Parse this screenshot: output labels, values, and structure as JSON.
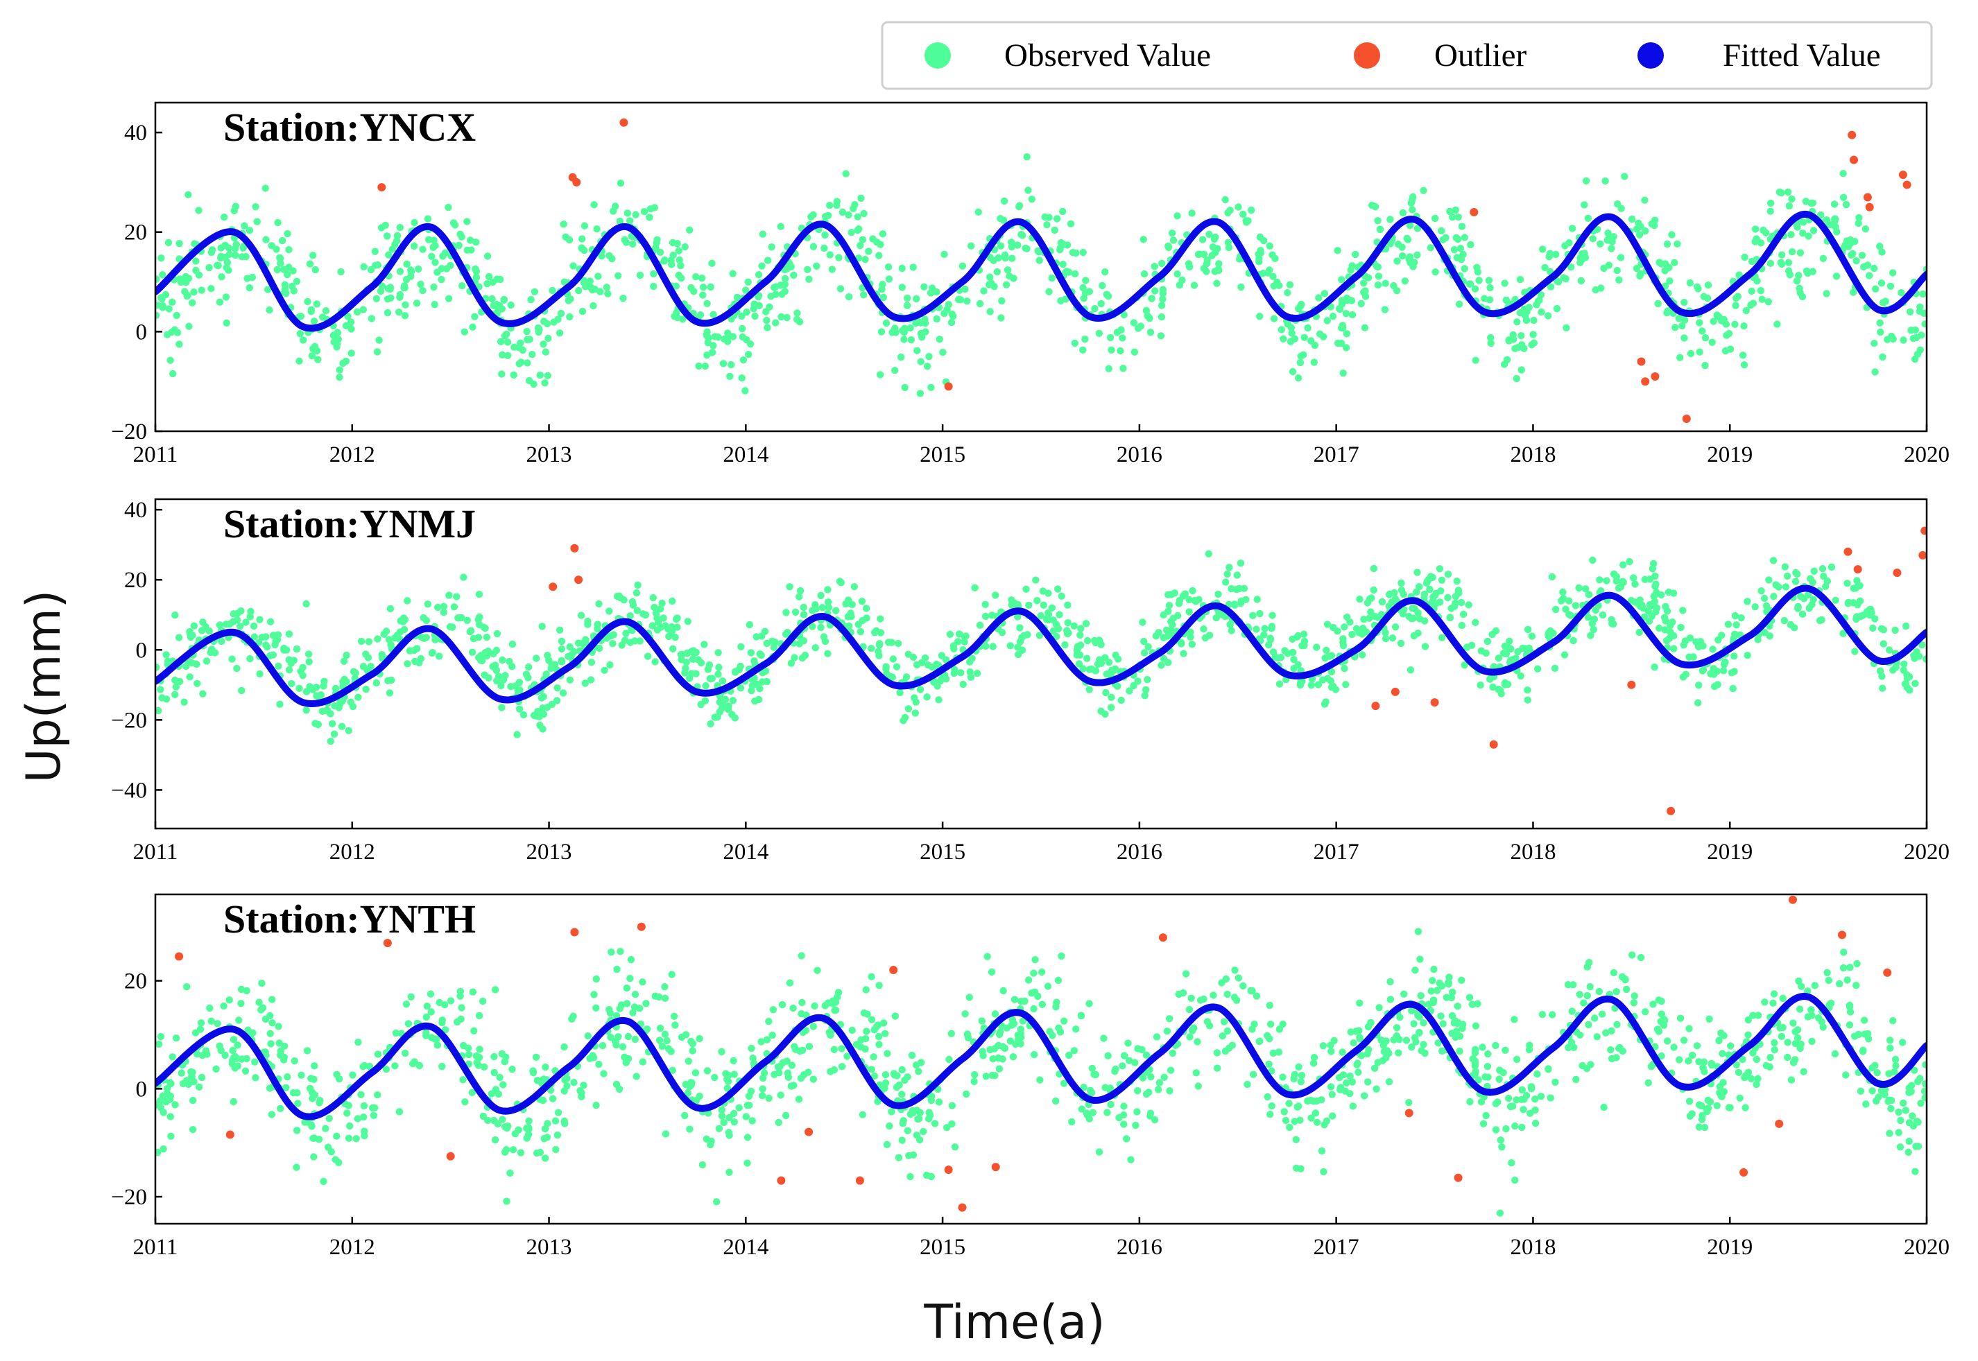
{
  "chart_data": {
    "type": "scatter",
    "ylabel": "Up(mm)",
    "xlabel": "Time(a)",
    "xlim": [
      2011,
      2020
    ],
    "x_ticks": [
      "2011",
      "2012",
      "2013",
      "2014",
      "2015",
      "2016",
      "2017",
      "2018",
      "2019",
      "2020"
    ],
    "legend": {
      "position": "top-right",
      "items": [
        {
          "label": "Observed Value",
          "color": "#4efc9a"
        },
        {
          "label": "Outlier",
          "color": "#f4512c"
        },
        {
          "label": "Fitted Value",
          "color": "#0a0ae6"
        }
      ]
    },
    "colors": {
      "observed": "#4efc9a",
      "outlier": "#f4512c",
      "fitted": "#0a0ae6"
    },
    "panels": [
      {
        "title": "Station:YNCX",
        "ylim": [
          -20,
          46
        ],
        "y_ticks": [
          -20,
          0,
          20,
          40
        ],
        "y_tick_labels": [
          "−20",
          "0",
          "20",
          "40"
        ],
        "fitted_series": {
          "name": "Fitted Value",
          "x": [
            2011.0,
            2011.4,
            2011.75,
            2012.1,
            2012.4,
            2012.75,
            2013.1,
            2013.4,
            2013.75,
            2014.1,
            2014.4,
            2014.75,
            2015.1,
            2015.4,
            2015.75,
            2016.1,
            2016.4,
            2016.75,
            2017.1,
            2017.4,
            2017.75,
            2018.1,
            2018.4,
            2018.75,
            2019.1,
            2019.4,
            2019.75,
            2020.0
          ],
          "y": [
            8,
            20,
            1,
            9,
            21,
            2,
            9,
            21,
            2,
            10,
            21.5,
            3,
            10,
            22,
            3,
            11,
            22,
            3,
            11,
            22.5,
            4,
            11,
            23,
            4,
            11.5,
            23.5,
            4.5,
            11.5
          ]
        },
        "observed_model": {
          "offset": 8.8,
          "trend": 0.35,
          "amp_annual": 9.2,
          "amp_semiannual": 2.0,
          "noise": 5.5,
          "count": 1400
        },
        "outliers": {
          "x": [
            2012.15,
            2013.12,
            2013.14,
            2013.38,
            2015.03,
            2017.7,
            2018.55,
            2018.57,
            2018.62,
            2018.78,
            2019.62,
            2019.63,
            2019.7,
            2019.71,
            2019.88,
            2019.9
          ],
          "y": [
            29,
            31,
            30,
            42,
            -11,
            24,
            -6,
            -10,
            -9,
            -17.5,
            39.5,
            34.5,
            27,
            25,
            31.5,
            29.5
          ]
        }
      },
      {
        "title": "Station:YNMJ",
        "ylim": [
          -51,
          43
        ],
        "y_ticks": [
          -40,
          -20,
          0,
          20,
          40
        ],
        "y_tick_labels": [
          "−40",
          "−20",
          "0",
          "20",
          "40"
        ],
        "fitted_series": {
          "name": "Fitted Value",
          "x": [
            2011.0,
            2011.4,
            2011.75,
            2012.1,
            2012.4,
            2012.75,
            2013.1,
            2013.4,
            2013.75,
            2014.1,
            2014.4,
            2014.75,
            2015.1,
            2015.4,
            2015.75,
            2016.1,
            2016.4,
            2016.75,
            2017.1,
            2017.4,
            2017.75,
            2018.1,
            2018.4,
            2018.75,
            2019.1,
            2019.4,
            2019.75,
            2020.0
          ],
          "y": [
            -9,
            5,
            -15,
            -7,
            6,
            -14,
            -5,
            8,
            -12,
            -4,
            9.5,
            -10,
            -2,
            11,
            -9,
            -1,
            12.5,
            -7,
            0,
            14,
            -6,
            2,
            15.5,
            -4,
            4,
            17.5,
            -3,
            5
          ]
        },
        "observed_model": {
          "offset": -4.0,
          "trend": 1.45,
          "amp_annual": 10.0,
          "amp_semiannual": 2.3,
          "noise": 5.5,
          "count": 1400
        },
        "outliers": {
          "x": [
            2013.02,
            2013.13,
            2013.15,
            2017.2,
            2017.3,
            2017.5,
            2017.8,
            2018.5,
            2018.7,
            2019.6,
            2019.65,
            2019.85,
            2019.98,
            2019.99
          ],
          "y": [
            18,
            29,
            20,
            -16,
            -12,
            -15,
            -27,
            -10,
            -46,
            28,
            23,
            22,
            27,
            34
          ]
        }
      },
      {
        "title": "Station:YNTH",
        "ylim": [
          -25,
          36
        ],
        "y_ticks": [
          -20,
          0,
          20
        ],
        "y_tick_labels": [
          "−20",
          "0",
          "20"
        ],
        "fitted_series": {
          "name": "Fitted Value",
          "x": [
            2011.0,
            2011.4,
            2011.75,
            2012.1,
            2012.4,
            2012.75,
            2013.1,
            2013.4,
            2013.75,
            2014.1,
            2014.4,
            2014.75,
            2015.1,
            2015.4,
            2015.75,
            2016.1,
            2016.4,
            2016.75,
            2017.1,
            2017.4,
            2017.75,
            2018.1,
            2018.4,
            2018.75,
            2019.1,
            2019.4,
            2019.75,
            2020.0
          ],
          "y": [
            1,
            11,
            -5,
            3,
            11.5,
            -4,
            4,
            12.5,
            -3.5,
            5,
            13,
            -3,
            5.5,
            14,
            -2,
            6.5,
            15,
            -1,
            7,
            15.5,
            -0.5,
            7.5,
            16.5,
            0.5,
            8,
            17,
            1,
            8
          ]
        },
        "observed_model": {
          "offset": 2.8,
          "trend": 0.62,
          "amp_annual": 8.3,
          "amp_semiannual": 2.0,
          "noise": 5.5,
          "count": 1400
        },
        "outliers": {
          "x": [
            2011.12,
            2011.38,
            2012.18,
            2012.5,
            2013.13,
            2013.47,
            2014.18,
            2014.32,
            2014.58,
            2014.75,
            2015.03,
            2015.1,
            2015.27,
            2016.12,
            2017.37,
            2017.62,
            2019.07,
            2019.25,
            2019.32,
            2019.57,
            2019.8
          ],
          "y": [
            24.5,
            -8.5,
            27,
            -12.5,
            29,
            30,
            -17,
            -8,
            -17,
            22,
            -15,
            -22,
            -14.5,
            28,
            -4.5,
            -16.5,
            -15.5,
            -6.5,
            35,
            28.5,
            21.5
          ]
        }
      }
    ]
  }
}
